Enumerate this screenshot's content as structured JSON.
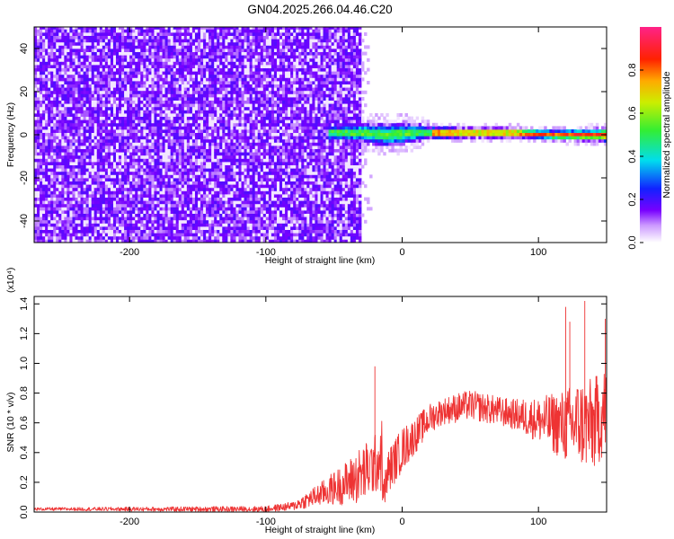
{
  "title": "GN04.2025.266.04.46.C20",
  "chart_data": [
    {
      "type": "heatmap",
      "xlabel": "Height of straight line (km)",
      "ylabel": "Frequency (Hz)",
      "xlim": [
        -270,
        150
      ],
      "ylim": [
        -50,
        50
      ],
      "x_ticks": [
        -200,
        -100,
        0,
        100
      ],
      "y_ticks": [
        -40,
        -20,
        0,
        20,
        40
      ],
      "noise_region_x": [
        -270,
        -30
      ],
      "signal_band": {
        "x": [
          -55,
          -30,
          -10,
          10,
          20,
          50,
          80,
          110,
          140,
          150
        ],
        "center_frequency": [
          1,
          1,
          0,
          1,
          1,
          1,
          1,
          0,
          0,
          0
        ],
        "half_width": [
          3,
          4,
          5,
          4,
          2.5,
          2,
          2,
          2,
          2.5,
          3
        ]
      },
      "colorbar": {
        "label": "Normalized spectral amplitude",
        "range": [
          0,
          1
        ],
        "ticks": [
          "0.0",
          "0.2",
          "0.4",
          "0.6",
          "0.8"
        ]
      }
    },
    {
      "type": "line",
      "xlabel": "Height of straight line (km)",
      "ylabel": "SNR (10 * v/v)",
      "y_multiplier": "(x10⁴)",
      "xlim": [
        -270,
        150
      ],
      "ylim": [
        0,
        1.45
      ],
      "x_ticks": [
        -200,
        -100,
        0,
        100
      ],
      "y_ticks": [
        "0.0",
        "0.2",
        "0.4",
        "0.6",
        "0.8",
        "1.0",
        "1.2",
        "1.4"
      ],
      "color": "#ee3333",
      "envelope": {
        "x": [
          -270,
          -180,
          -100,
          -80,
          -60,
          -40,
          -30,
          -20,
          -15,
          -14,
          -10,
          0,
          10,
          20,
          30,
          40,
          50,
          60,
          80,
          100,
          110,
          120,
          130,
          140,
          150
        ],
        "base": [
          0.02,
          0.02,
          0.02,
          0.04,
          0.12,
          0.2,
          0.25,
          0.32,
          0.38,
          0.1,
          0.28,
          0.42,
          0.52,
          0.63,
          0.68,
          0.7,
          0.72,
          0.7,
          0.66,
          0.62,
          0.6,
          0.58,
          0.6,
          0.58,
          0.7
        ],
        "spread": [
          0.01,
          0.015,
          0.02,
          0.03,
          0.08,
          0.15,
          0.2,
          0.2,
          0.25,
          0.1,
          0.15,
          0.15,
          0.12,
          0.1,
          0.09,
          0.1,
          0.1,
          0.1,
          0.1,
          0.15,
          0.2,
          0.25,
          0.3,
          0.32,
          0.3
        ]
      },
      "peaks": [
        {
          "x": -20,
          "y": 0.98
        },
        {
          "x": 120,
          "y": 1.38
        },
        {
          "x": 123,
          "y": 1.28
        },
        {
          "x": 134,
          "y": 1.42
        },
        {
          "x": 149,
          "y": 1.3
        }
      ]
    }
  ]
}
